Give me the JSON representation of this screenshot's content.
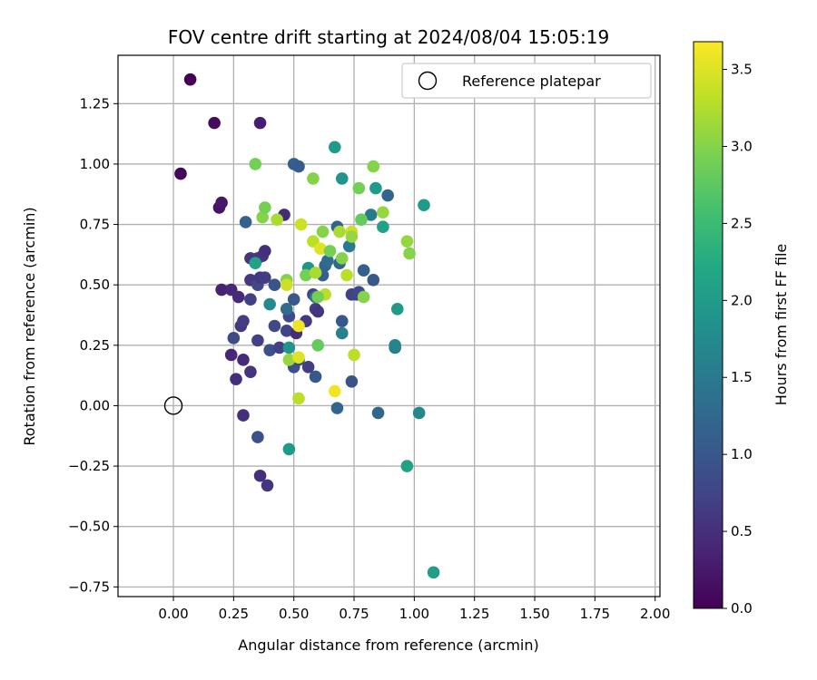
{
  "chart_data": {
    "type": "scatter",
    "title": "FOV centre drift starting at 2024/08/04 15:05:19",
    "xlabel": "Angular distance from reference (arcmin)",
    "ylabel": "Rotation from reference (arcmin)",
    "xlim": [
      -0.23,
      2.02
    ],
    "ylim": [
      -0.79,
      1.45
    ],
    "x_ticks": [
      "0.00",
      "0.25",
      "0.50",
      "0.75",
      "1.00",
      "1.25",
      "1.50",
      "1.75",
      "2.00"
    ],
    "y_ticks": [
      "−0.75",
      "−0.50",
      "−0.25",
      "0.00",
      "0.25",
      "0.50",
      "0.75",
      "1.00",
      "1.25"
    ],
    "x_tick_values": [
      0,
      0.25,
      0.5,
      0.75,
      1.0,
      1.25,
      1.5,
      1.75,
      2.0
    ],
    "y_tick_values": [
      -0.75,
      -0.5,
      -0.25,
      0,
      0.25,
      0.5,
      0.75,
      1.0,
      1.25
    ],
    "grid": true,
    "legend": {
      "placement": "top-right",
      "entries": [
        "Reference platepar"
      ]
    },
    "reference_point": {
      "x": 0.0,
      "y": 0.0
    },
    "colorbar": {
      "label": "Hours from first FF file",
      "colormap": "viridis",
      "range": [
        0.0,
        3.68
      ],
      "ticks": [
        "0.0",
        "0.5",
        "1.0",
        "1.5",
        "2.0",
        "2.5",
        "3.0",
        "3.5"
      ],
      "tick_values": [
        0,
        0.5,
        1.0,
        1.5,
        2.0,
        2.5,
        3.0,
        3.5
      ]
    },
    "points": [
      {
        "x": 0.07,
        "y": 1.35,
        "h": 0.0
      },
      {
        "x": 0.03,
        "y": 0.96,
        "h": 0.05
      },
      {
        "x": 0.17,
        "y": 1.17,
        "h": 0.1
      },
      {
        "x": 0.36,
        "y": 1.17,
        "h": 0.3
      },
      {
        "x": 0.19,
        "y": 0.82,
        "h": 0.2
      },
      {
        "x": 0.2,
        "y": 0.84,
        "h": 0.25
      },
      {
        "x": 0.2,
        "y": 0.48,
        "h": 0.35
      },
      {
        "x": 0.24,
        "y": 0.48,
        "h": 0.4
      },
      {
        "x": 0.27,
        "y": 0.45,
        "h": 0.45
      },
      {
        "x": 0.24,
        "y": 0.21,
        "h": 0.4
      },
      {
        "x": 0.29,
        "y": 0.19,
        "h": 0.45
      },
      {
        "x": 0.26,
        "y": 0.11,
        "h": 0.5
      },
      {
        "x": 0.29,
        "y": -0.04,
        "h": 0.5
      },
      {
        "x": 0.36,
        "y": -0.29,
        "h": 0.5
      },
      {
        "x": 0.39,
        "y": -0.33,
        "h": 0.55
      },
      {
        "x": 0.35,
        "y": -0.13,
        "h": 0.9
      },
      {
        "x": 0.32,
        "y": 0.14,
        "h": 0.55
      },
      {
        "x": 0.35,
        "y": 0.27,
        "h": 0.7
      },
      {
        "x": 0.28,
        "y": 0.33,
        "h": 0.6
      },
      {
        "x": 0.29,
        "y": 0.35,
        "h": 0.65
      },
      {
        "x": 0.25,
        "y": 0.28,
        "h": 0.85
      },
      {
        "x": 0.32,
        "y": 0.44,
        "h": 0.7
      },
      {
        "x": 0.32,
        "y": 0.52,
        "h": 0.6
      },
      {
        "x": 0.35,
        "y": 0.5,
        "h": 0.8
      },
      {
        "x": 0.32,
        "y": 0.61,
        "h": 0.55
      },
      {
        "x": 0.35,
        "y": 0.61,
        "h": 0.6
      },
      {
        "x": 0.37,
        "y": 0.62,
        "h": 0.55
      },
      {
        "x": 0.38,
        "y": 0.64,
        "h": 0.5
      },
      {
        "x": 0.36,
        "y": 0.53,
        "h": 0.6
      },
      {
        "x": 0.38,
        "y": 0.53,
        "h": 0.65
      },
      {
        "x": 0.3,
        "y": 0.76,
        "h": 1.15
      },
      {
        "x": 0.46,
        "y": 0.79,
        "h": 0.45
      },
      {
        "x": 0.5,
        "y": 1.0,
        "h": 1.1
      },
      {
        "x": 0.52,
        "y": 0.99,
        "h": 1.05
      },
      {
        "x": 0.42,
        "y": 0.5,
        "h": 0.95
      },
      {
        "x": 0.4,
        "y": 0.42,
        "h": 1.75
      },
      {
        "x": 0.4,
        "y": 0.23,
        "h": 0.9
      },
      {
        "x": 0.42,
        "y": 0.33,
        "h": 0.8
      },
      {
        "x": 0.44,
        "y": 0.24,
        "h": 0.7
      },
      {
        "x": 0.47,
        "y": 0.31,
        "h": 0.75
      },
      {
        "x": 0.48,
        "y": 0.37,
        "h": 0.8
      },
      {
        "x": 0.47,
        "y": 0.4,
        "h": 1.3
      },
      {
        "x": 0.5,
        "y": 0.44,
        "h": 1.0
      },
      {
        "x": 0.51,
        "y": 0.3,
        "h": 0.5
      },
      {
        "x": 0.55,
        "y": 0.35,
        "h": 0.6
      },
      {
        "x": 0.5,
        "y": 0.16,
        "h": 0.9
      },
      {
        "x": 0.52,
        "y": 0.19,
        "h": 0.85
      },
      {
        "x": 0.56,
        "y": 0.16,
        "h": 0.65
      },
      {
        "x": 0.59,
        "y": 0.12,
        "h": 1.0
      },
      {
        "x": 0.48,
        "y": 0.24,
        "h": 1.9
      },
      {
        "x": 0.48,
        "y": -0.18,
        "h": 2.0
      },
      {
        "x": 0.59,
        "y": 0.4,
        "h": 0.65
      },
      {
        "x": 0.6,
        "y": 0.39,
        "h": 0.55
      },
      {
        "x": 0.58,
        "y": 0.46,
        "h": 0.75
      },
      {
        "x": 0.59,
        "y": 0.45,
        "h": 1.35
      },
      {
        "x": 0.56,
        "y": 0.57,
        "h": 1.9
      },
      {
        "x": 0.62,
        "y": 0.54,
        "h": 1.1
      },
      {
        "x": 0.63,
        "y": 0.58,
        "h": 1.2
      },
      {
        "x": 0.64,
        "y": 0.6,
        "h": 1.3
      },
      {
        "x": 0.69,
        "y": 0.59,
        "h": 1.2
      },
      {
        "x": 0.68,
        "y": 0.74,
        "h": 1.15
      },
      {
        "x": 0.7,
        "y": 0.94,
        "h": 1.9
      },
      {
        "x": 0.67,
        "y": 1.07,
        "h": 2.0
      },
      {
        "x": 0.73,
        "y": 0.66,
        "h": 1.5
      },
      {
        "x": 0.74,
        "y": 0.46,
        "h": 0.7
      },
      {
        "x": 0.76,
        "y": 0.46,
        "h": 0.75
      },
      {
        "x": 0.77,
        "y": 0.47,
        "h": 0.8
      },
      {
        "x": 0.7,
        "y": 0.35,
        "h": 1.0
      },
      {
        "x": 0.7,
        "y": 0.3,
        "h": 1.6
      },
      {
        "x": 0.74,
        "y": 0.1,
        "h": 0.95
      },
      {
        "x": 0.68,
        "y": -0.01,
        "h": 1.2
      },
      {
        "x": 0.79,
        "y": 0.56,
        "h": 1.1
      },
      {
        "x": 0.83,
        "y": 0.52,
        "h": 1.0
      },
      {
        "x": 0.82,
        "y": 0.79,
        "h": 1.5
      },
      {
        "x": 0.89,
        "y": 0.87,
        "h": 1.2
      },
      {
        "x": 0.84,
        "y": 0.9,
        "h": 2.0
      },
      {
        "x": 0.87,
        "y": 0.74,
        "h": 2.1
      },
      {
        "x": 0.85,
        "y": -0.03,
        "h": 1.2
      },
      {
        "x": 0.92,
        "y": 0.24,
        "h": 1.5
      },
      {
        "x": 0.93,
        "y": 0.4,
        "h": 2.0
      },
      {
        "x": 0.97,
        "y": -0.25,
        "h": 2.1
      },
      {
        "x": 1.02,
        "y": -0.03,
        "h": 1.7
      },
      {
        "x": 1.04,
        "y": 0.83,
        "h": 2.0
      },
      {
        "x": 1.08,
        "y": -0.69,
        "h": 2.05
      },
      {
        "x": 0.92,
        "y": 0.25,
        "h": 1.65
      },
      {
        "x": 0.34,
        "y": 1.0,
        "h": 2.9
      },
      {
        "x": 0.34,
        "y": 0.59,
        "h": 2.1
      },
      {
        "x": 0.37,
        "y": 0.78,
        "h": 3.0
      },
      {
        "x": 0.38,
        "y": 0.82,
        "h": 2.9
      },
      {
        "x": 0.43,
        "y": 0.77,
        "h": 3.2
      },
      {
        "x": 0.47,
        "y": 0.52,
        "h": 3.0
      },
      {
        "x": 0.47,
        "y": 0.5,
        "h": 3.4
      },
      {
        "x": 0.48,
        "y": 0.19,
        "h": 3.1
      },
      {
        "x": 0.52,
        "y": 0.2,
        "h": 3.5
      },
      {
        "x": 0.52,
        "y": 0.33,
        "h": 3.6
      },
      {
        "x": 0.53,
        "y": 0.75,
        "h": 3.4
      },
      {
        "x": 0.55,
        "y": 0.54,
        "h": 2.9
      },
      {
        "x": 0.58,
        "y": 0.94,
        "h": 3.0
      },
      {
        "x": 0.58,
        "y": 0.68,
        "h": 3.3
      },
      {
        "x": 0.59,
        "y": 0.55,
        "h": 3.2
      },
      {
        "x": 0.6,
        "y": 0.25,
        "h": 2.8
      },
      {
        "x": 0.61,
        "y": 0.65,
        "h": 3.5
      },
      {
        "x": 0.62,
        "y": 0.72,
        "h": 3.0
      },
      {
        "x": 0.63,
        "y": 0.46,
        "h": 3.3
      },
      {
        "x": 0.65,
        "y": 0.64,
        "h": 2.9
      },
      {
        "x": 0.67,
        "y": 0.06,
        "h": 3.6
      },
      {
        "x": 0.69,
        "y": 0.72,
        "h": 3.2
      },
      {
        "x": 0.7,
        "y": 0.61,
        "h": 3.0
      },
      {
        "x": 0.72,
        "y": 0.54,
        "h": 3.3
      },
      {
        "x": 0.74,
        "y": 0.72,
        "h": 3.4
      },
      {
        "x": 0.74,
        "y": 0.7,
        "h": 3.1
      },
      {
        "x": 0.75,
        "y": 0.21,
        "h": 3.3
      },
      {
        "x": 0.77,
        "y": 0.9,
        "h": 2.9
      },
      {
        "x": 0.78,
        "y": 0.77,
        "h": 2.8
      },
      {
        "x": 0.79,
        "y": 0.45,
        "h": 3.0
      },
      {
        "x": 0.83,
        "y": 0.99,
        "h": 3.0
      },
      {
        "x": 0.87,
        "y": 0.8,
        "h": 3.1
      },
      {
        "x": 0.97,
        "y": 0.68,
        "h": 3.1
      },
      {
        "x": 0.98,
        "y": 0.63,
        "h": 3.0
      },
      {
        "x": 0.52,
        "y": 0.03,
        "h": 3.3
      },
      {
        "x": 0.6,
        "y": 0.45,
        "h": 2.9
      }
    ]
  }
}
